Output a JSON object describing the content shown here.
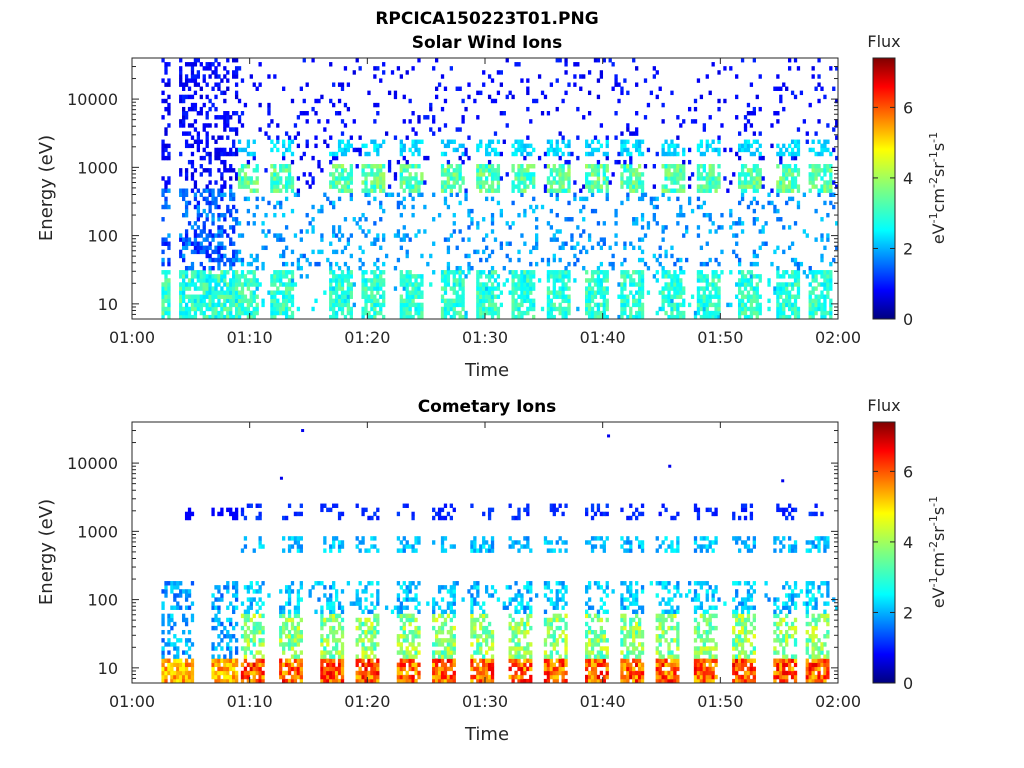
{
  "figure": {
    "title": "RPCICA150223T01.PNG"
  },
  "colorbar": {
    "title": "Flux",
    "unit_label": "eV-1cm-2sr-1s-1",
    "unit_base": [
      "eV",
      "cm",
      "sr",
      "s"
    ],
    "unit_exp": [
      "-1",
      "-2",
      "-1",
      "-1"
    ],
    "range": [
      0,
      7.4
    ],
    "tick_values": [
      0,
      2,
      4,
      6
    ],
    "tick_labels": [
      "0",
      "2",
      "4",
      "6"
    ],
    "colormap": "jet"
  },
  "chart_data": [
    {
      "type": "heatmap",
      "title": "Solar Wind Ions",
      "xlabel": "Time",
      "ylabel": "Energy (eV)",
      "yscale": "log",
      "ylim": [
        6,
        40000
      ],
      "xlim": [
        "01:00",
        "02:00"
      ],
      "x_ticks": [
        "01:00",
        "01:10",
        "01:20",
        "01:30",
        "01:40",
        "01:50",
        "02:00"
      ],
      "y_ticks": [
        10,
        100,
        1000,
        10000
      ],
      "y_tick_labels": [
        "10",
        "100",
        "1000",
        "10000"
      ],
      "low_energy_band_flux": 3.2,
      "sweep_band_energy_eV": 700,
      "sweep_band_flux": 3.8,
      "pulses_minutes": [
        9.7,
        12.7,
        17.8,
        20.6,
        23.8,
        27.2,
        30.2,
        33.3,
        36.3,
        39.6,
        42.6,
        45.9,
        49.0,
        52.5,
        55.7,
        58.5
      ]
    },
    {
      "type": "heatmap",
      "title": "Cometary Ions",
      "xlabel": "Time",
      "ylabel": "Energy (eV)",
      "yscale": "log",
      "ylim": [
        6,
        40000
      ],
      "xlim": [
        "01:00",
        "02:00"
      ],
      "x_ticks": [
        "01:00",
        "01:10",
        "01:20",
        "01:30",
        "01:40",
        "01:50",
        "02:00"
      ],
      "y_ticks": [
        10,
        100,
        1000,
        10000
      ],
      "y_tick_labels": [
        "10",
        "100",
        "1000",
        "10000"
      ],
      "low_energy_band_flux": 6.2,
      "pulses_minutes": [
        10.2,
        13.6,
        16.9,
        20.0,
        23.4,
        26.6,
        29.8,
        32.9,
        36.0,
        39.4,
        42.5,
        45.6,
        48.8,
        52.1,
        55.4,
        58.2
      ],
      "outlier_points": [
        {
          "t": "01:14.5",
          "energy_eV": 30000
        },
        {
          "t": "01:40.5",
          "energy_eV": 25000
        },
        {
          "t": "01:45.7",
          "energy_eV": 9000
        },
        {
          "t": "01:12.7",
          "energy_eV": 6000
        },
        {
          "t": "01:55.3",
          "energy_eV": 5500
        }
      ]
    }
  ]
}
